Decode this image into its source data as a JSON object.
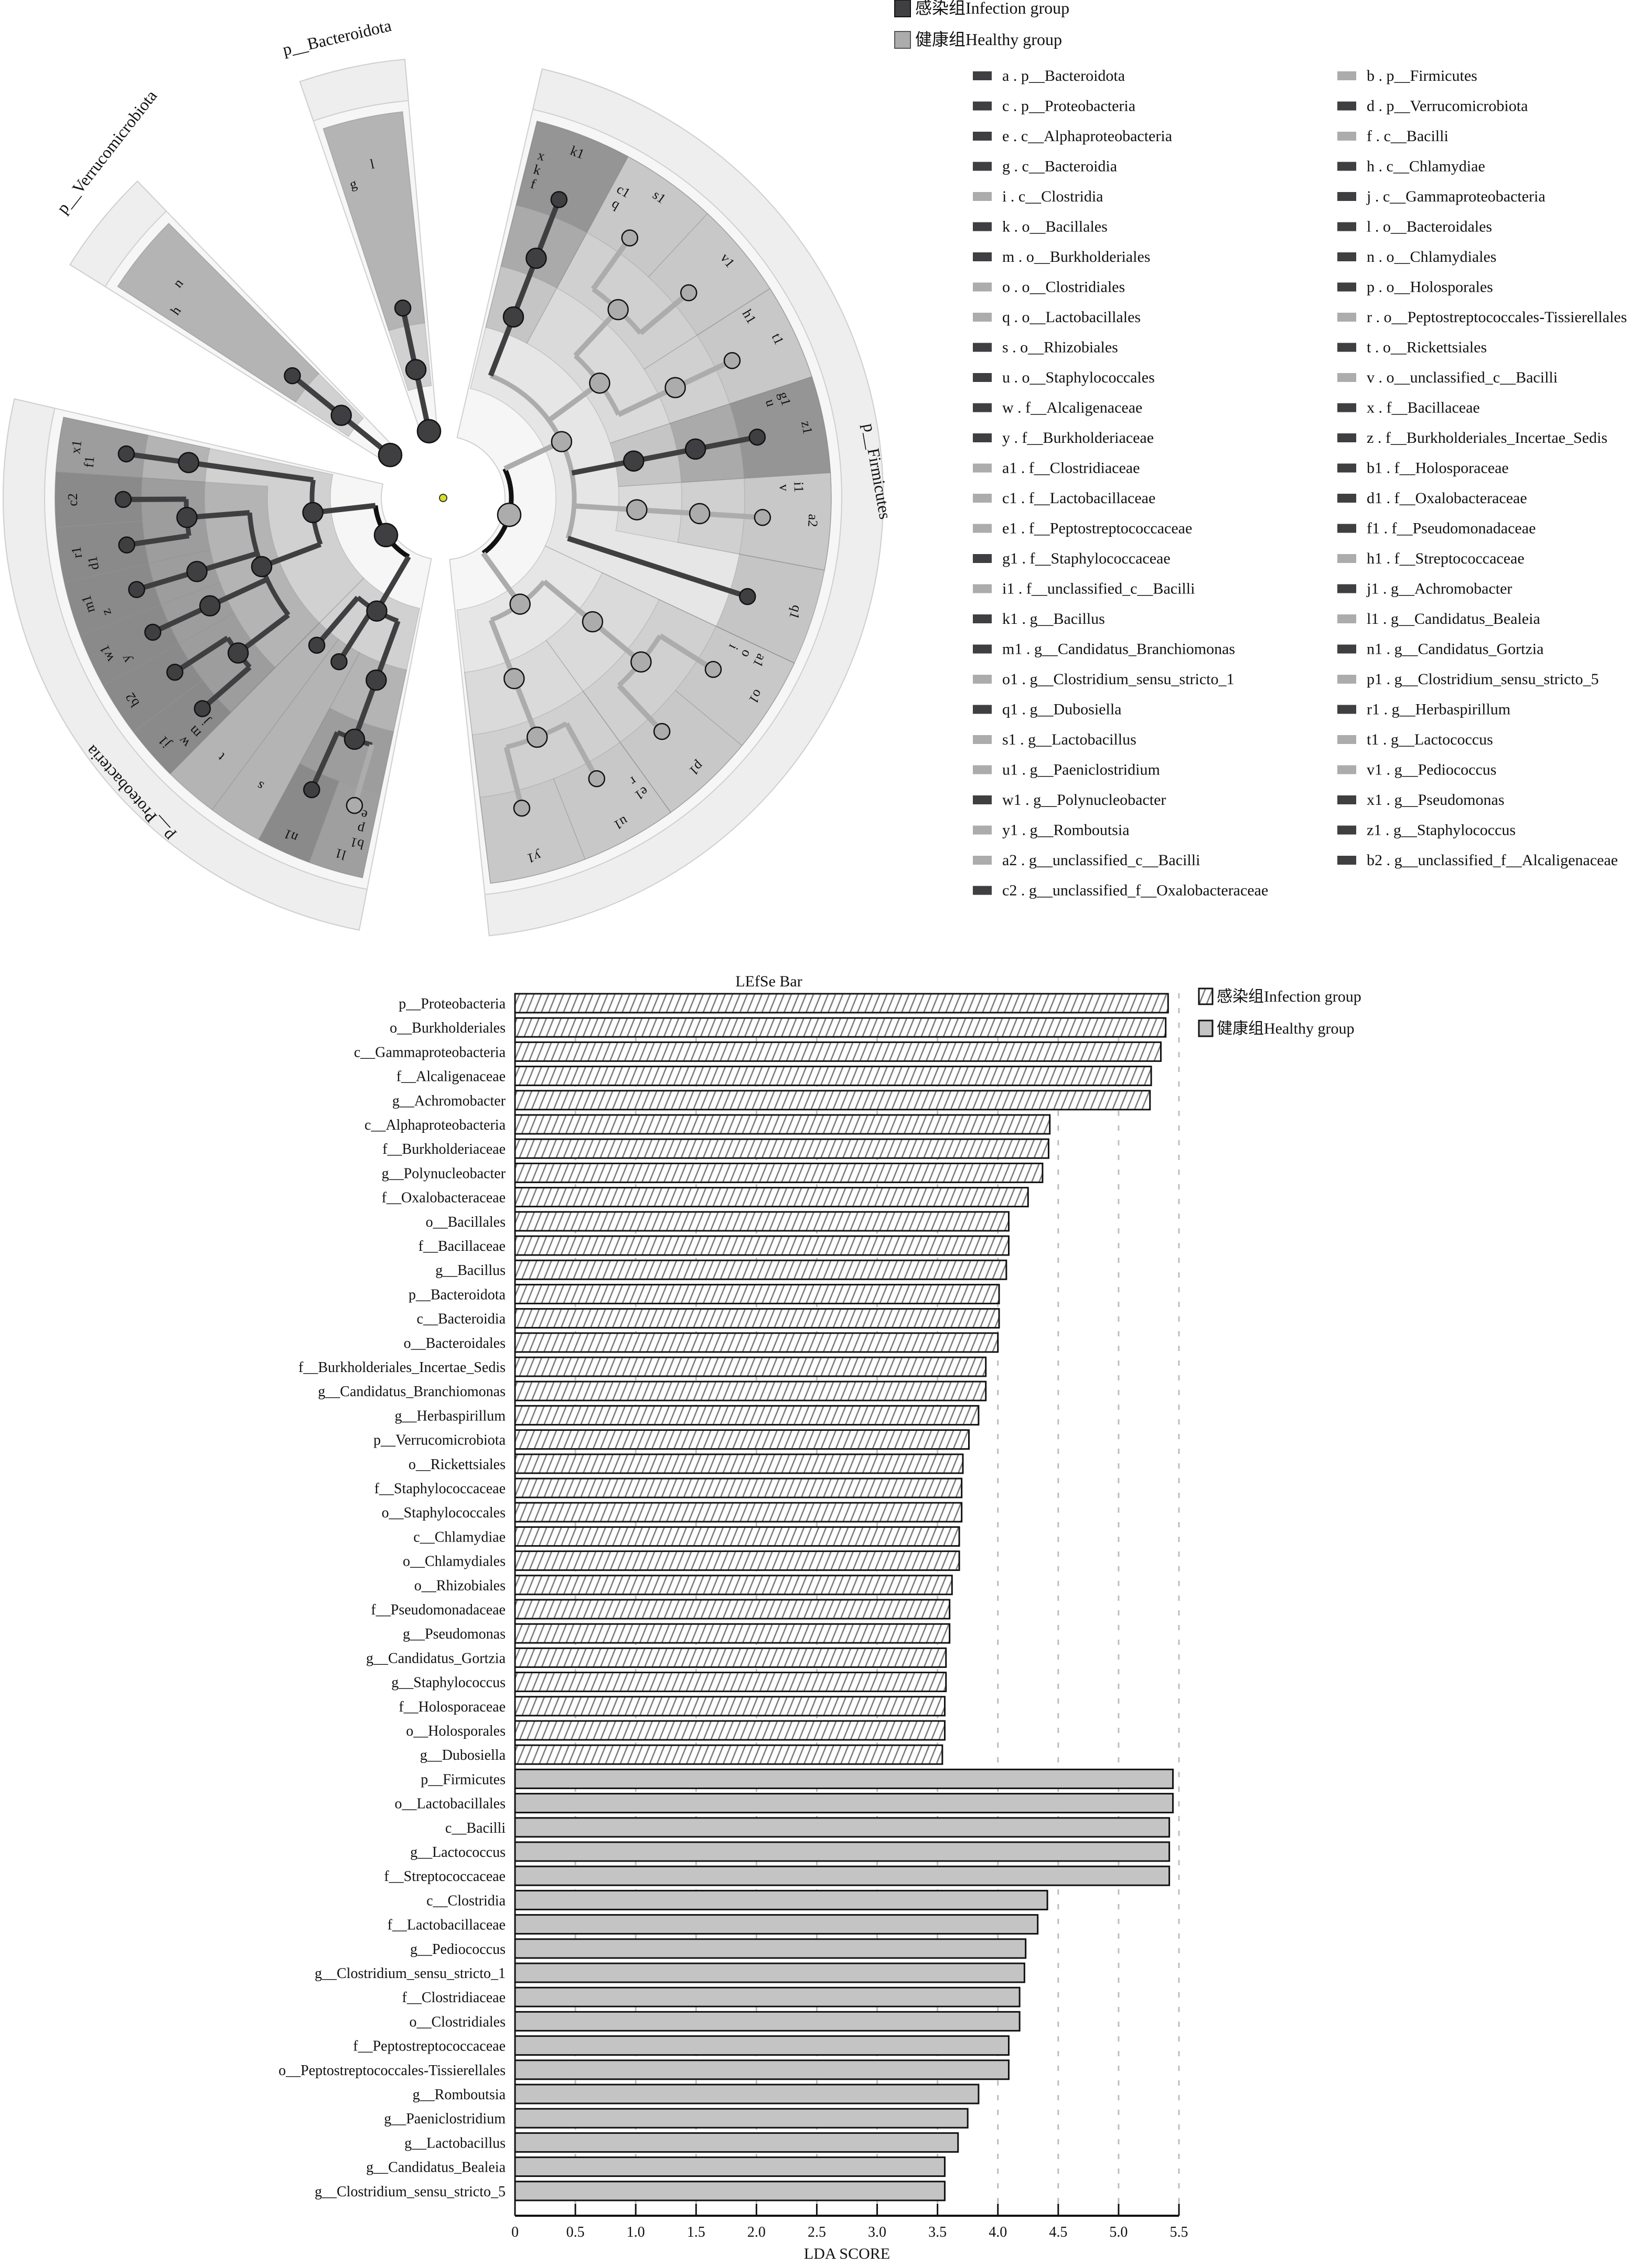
{
  "groups": {
    "infection": {
      "label": "感染组Infection group",
      "color": "#3f3f42"
    },
    "healthy": {
      "label": "健康组Healthy group",
      "color": "#acacac"
    }
  },
  "cladogram": {
    "phylum_labels": {
      "a": "p__Bacteroidota",
      "d": "p__Verrucomicrobiota",
      "b": "p__Firmicutes",
      "c": "p__Proteobacteria"
    },
    "nonsignificant_node_color": "#d9e021",
    "nodes": [
      {
        "key": "a",
        "name": "p__Bacteroidota",
        "group": "infection",
        "parent": null
      },
      {
        "key": "b",
        "name": "p__Firmicutes",
        "group": "healthy",
        "parent": null
      },
      {
        "key": "c",
        "name": "p__Proteobacteria",
        "group": "infection",
        "parent": null
      },
      {
        "key": "d",
        "name": "p__Verrucomicrobiota",
        "group": "infection",
        "parent": null
      },
      {
        "key": "e",
        "name": "c__Alphaproteobacteria",
        "group": "infection",
        "parent": "c"
      },
      {
        "key": "f",
        "name": "c__Bacilli",
        "group": "healthy",
        "parent": "b"
      },
      {
        "key": "g",
        "name": "c__Bacteroidia",
        "group": "infection",
        "parent": "a"
      },
      {
        "key": "h",
        "name": "c__Chlamydiae",
        "group": "infection",
        "parent": "d"
      },
      {
        "key": "i",
        "name": "c__Clostridia",
        "group": "healthy",
        "parent": "b"
      },
      {
        "key": "j",
        "name": "c__Gammaproteobacteria",
        "group": "infection",
        "parent": "c"
      },
      {
        "key": "k",
        "name": "o__Bacillales",
        "group": "infection",
        "parent": "f"
      },
      {
        "key": "l",
        "name": "o__Bacteroidales",
        "group": "infection",
        "parent": "g"
      },
      {
        "key": "m",
        "name": "o__Burkholderiales",
        "group": "infection",
        "parent": "j"
      },
      {
        "key": "n",
        "name": "o__Chlamydiales",
        "group": "infection",
        "parent": "h"
      },
      {
        "key": "o",
        "name": "o__Clostridiales",
        "group": "healthy",
        "parent": "i"
      },
      {
        "key": "p",
        "name": "o__Holosporales",
        "group": "infection",
        "parent": "e"
      },
      {
        "key": "q",
        "name": "o__Lactobacillales",
        "group": "healthy",
        "parent": "f"
      },
      {
        "key": "r",
        "name": "o__Peptostreptococcales-Tissierellales",
        "group": "healthy",
        "parent": "i"
      },
      {
        "key": "s",
        "name": "o__Rhizobiales",
        "group": "infection",
        "parent": "e"
      },
      {
        "key": "t",
        "name": "o__Rickettsiales",
        "group": "infection",
        "parent": "e"
      },
      {
        "key": "u",
        "name": "o__Staphylococcales",
        "group": "infection",
        "parent": "f"
      },
      {
        "key": "v",
        "name": "o__unclassified_c__Bacilli",
        "group": "healthy",
        "parent": "f"
      },
      {
        "key": "w",
        "name": "f__Alcaligenaceae",
        "group": "infection",
        "parent": "m"
      },
      {
        "key": "x",
        "name": "f__Bacillaceae",
        "group": "infection",
        "parent": "k"
      },
      {
        "key": "y",
        "name": "f__Burkholderiaceae",
        "group": "infection",
        "parent": "m"
      },
      {
        "key": "z",
        "name": "f__Burkholderiales_Incertae_Sedis",
        "group": "infection",
        "parent": "m"
      },
      {
        "key": "a1",
        "name": "f__Clostridiaceae",
        "group": "healthy",
        "parent": "o"
      },
      {
        "key": "b1",
        "name": "f__Holosporaceae",
        "group": "infection",
        "parent": "p"
      },
      {
        "key": "c1",
        "name": "f__Lactobacillaceae",
        "group": "healthy",
        "parent": "q"
      },
      {
        "key": "d1",
        "name": "f__Oxalobacteraceae",
        "group": "infection",
        "parent": "m"
      },
      {
        "key": "e1",
        "name": "f__Peptostreptococcaceae",
        "group": "healthy",
        "parent": "r"
      },
      {
        "key": "f1",
        "name": "f__Pseudomonadaceae",
        "group": "infection",
        "parent": "j"
      },
      {
        "key": "g1",
        "name": "f__Staphylococcaceae",
        "group": "infection",
        "parent": "u"
      },
      {
        "key": "h1",
        "name": "f__Streptococcaceae",
        "group": "healthy",
        "parent": "q"
      },
      {
        "key": "i1",
        "name": "f__unclassified_c__Bacilli",
        "group": "healthy",
        "parent": "v"
      },
      {
        "key": "j1",
        "name": "g__Achromobacter",
        "group": "infection",
        "parent": "w"
      },
      {
        "key": "k1",
        "name": "g__Bacillus",
        "group": "infection",
        "parent": "x"
      },
      {
        "key": "l1",
        "name": "g__Candidatus_Bealeia",
        "group": "healthy",
        "parent": "b1"
      },
      {
        "key": "m1",
        "name": "g__Candidatus_Branchiomonas",
        "group": "infection",
        "parent": "z"
      },
      {
        "key": "n1",
        "name": "g__Candidatus_Gortzia",
        "group": "infection",
        "parent": "b1"
      },
      {
        "key": "o1",
        "name": "g__Clostridium_sensu_stricto_1",
        "group": "healthy",
        "parent": "a1"
      },
      {
        "key": "p1",
        "name": "g__Clostridium_sensu_stricto_5",
        "group": "healthy",
        "parent": "a1"
      },
      {
        "key": "q1",
        "name": "g__Dubosiella",
        "group": "infection",
        "parent": "f"
      },
      {
        "key": "r1",
        "name": "g__Herbaspirillum",
        "group": "infection",
        "parent": "d1"
      },
      {
        "key": "s1",
        "name": "g__Lactobacillus",
        "group": "healthy",
        "parent": "c1"
      },
      {
        "key": "t1",
        "name": "g__Lactococcus",
        "group": "healthy",
        "parent": "h1"
      },
      {
        "key": "u1",
        "name": "g__Paeniclostridium",
        "group": "healthy",
        "parent": "e1"
      },
      {
        "key": "v1",
        "name": "g__Pediococcus",
        "group": "healthy",
        "parent": "c1"
      },
      {
        "key": "w1",
        "name": "g__Polynucleobacter",
        "group": "infection",
        "parent": "y"
      },
      {
        "key": "x1",
        "name": "g__Pseudomonas",
        "group": "infection",
        "parent": "f1"
      },
      {
        "key": "y1",
        "name": "g__Romboutsia",
        "group": "healthy",
        "parent": "e1"
      },
      {
        "key": "z1",
        "name": "g__Staphylococcus",
        "group": "infection",
        "parent": "g1"
      },
      {
        "key": "a2",
        "name": "g__unclassified_c__Bacilli",
        "group": "healthy",
        "parent": "i1"
      },
      {
        "key": "b2",
        "name": "g__unclassified_f__Alcaligenaceae",
        "group": "infection",
        "parent": "w"
      },
      {
        "key": "c2",
        "name": "g__unclassified_f__Oxalobacteraceae",
        "group": "infection",
        "parent": "d1"
      }
    ]
  },
  "chart_data": {
    "type": "bar",
    "orientation": "horizontal",
    "title": "LEfSe Bar",
    "xlabel": "LDA SCORE",
    "xlim": [
      0,
      5.5
    ],
    "xticks": [
      "0",
      "0.5",
      "1.0",
      "1.5",
      "2.0",
      "2.5",
      "3.0",
      "3.5",
      "4.0",
      "4.5",
      "5.0",
      "5.5"
    ],
    "grid": "vertical dotted",
    "legend_position": "top-right",
    "series": [
      {
        "name": "感染组Infection group",
        "group": "infection",
        "fill": "hatched"
      },
      {
        "name": "健康组Healthy group",
        "group": "healthy",
        "fill": "#c4c4c4"
      }
    ],
    "bars": [
      {
        "label": "p__Proteobacteria",
        "group": "infection",
        "value": 5.41
      },
      {
        "label": "o__Burkholderiales",
        "group": "infection",
        "value": 5.39
      },
      {
        "label": "c__Gammaproteobacteria",
        "group": "infection",
        "value": 5.35
      },
      {
        "label": "f__Alcaligenaceae",
        "group": "infection",
        "value": 5.27
      },
      {
        "label": "g__Achromobacter",
        "group": "infection",
        "value": 5.26
      },
      {
        "label": "c__Alphaproteobacteria",
        "group": "infection",
        "value": 4.43
      },
      {
        "label": "f__Burkholderiaceae",
        "group": "infection",
        "value": 4.42
      },
      {
        "label": "g__Polynucleobacter",
        "group": "infection",
        "value": 4.37
      },
      {
        "label": "f__Oxalobacteraceae",
        "group": "infection",
        "value": 4.25
      },
      {
        "label": "o__Bacillales",
        "group": "infection",
        "value": 4.09
      },
      {
        "label": "f__Bacillaceae",
        "group": "infection",
        "value": 4.09
      },
      {
        "label": "g__Bacillus",
        "group": "infection",
        "value": 4.07
      },
      {
        "label": "p__Bacteroidota",
        "group": "infection",
        "value": 4.01
      },
      {
        "label": "c__Bacteroidia",
        "group": "infection",
        "value": 4.01
      },
      {
        "label": "o__Bacteroidales",
        "group": "infection",
        "value": 4.0
      },
      {
        "label": "f__Burkholderiales_Incertae_Sedis",
        "group": "infection",
        "value": 3.9
      },
      {
        "label": "g__Candidatus_Branchiomonas",
        "group": "infection",
        "value": 3.9
      },
      {
        "label": "g__Herbaspirillum",
        "group": "infection",
        "value": 3.84
      },
      {
        "label": "p__Verrucomicrobiota",
        "group": "infection",
        "value": 3.76
      },
      {
        "label": "o__Rickettsiales",
        "group": "infection",
        "value": 3.71
      },
      {
        "label": "f__Staphylococcaceae",
        "group": "infection",
        "value": 3.7
      },
      {
        "label": "o__Staphylococcales",
        "group": "infection",
        "value": 3.7
      },
      {
        "label": "c__Chlamydiae",
        "group": "infection",
        "value": 3.68
      },
      {
        "label": "o__Chlamydiales",
        "group": "infection",
        "value": 3.68
      },
      {
        "label": "o__Rhizobiales",
        "group": "infection",
        "value": 3.62
      },
      {
        "label": "f__Pseudomonadaceae",
        "group": "infection",
        "value": 3.6
      },
      {
        "label": "g__Pseudomonas",
        "group": "infection",
        "value": 3.6
      },
      {
        "label": "g__Candidatus_Gortzia",
        "group": "infection",
        "value": 3.57
      },
      {
        "label": "g__Staphylococcus",
        "group": "infection",
        "value": 3.57
      },
      {
        "label": "f__Holosporaceae",
        "group": "infection",
        "value": 3.56
      },
      {
        "label": "o__Holosporales",
        "group": "infection",
        "value": 3.56
      },
      {
        "label": "g__Dubosiella",
        "group": "infection",
        "value": 3.54
      },
      {
        "label": "p__Firmicutes",
        "group": "healthy",
        "value": 5.45
      },
      {
        "label": "o__Lactobacillales",
        "group": "healthy",
        "value": 5.45
      },
      {
        "label": "c__Bacilli",
        "group": "healthy",
        "value": 5.42
      },
      {
        "label": "g__Lactococcus",
        "group": "healthy",
        "value": 5.42
      },
      {
        "label": "f__Streptococcaceae",
        "group": "healthy",
        "value": 5.42
      },
      {
        "label": "c__Clostridia",
        "group": "healthy",
        "value": 4.41
      },
      {
        "label": "f__Lactobacillaceae",
        "group": "healthy",
        "value": 4.33
      },
      {
        "label": "g__Pediococcus",
        "group": "healthy",
        "value": 4.23
      },
      {
        "label": "g__Clostridium_sensu_stricto_1",
        "group": "healthy",
        "value": 4.22
      },
      {
        "label": "f__Clostridiaceae",
        "group": "healthy",
        "value": 4.18
      },
      {
        "label": "o__Clostridiales",
        "group": "healthy",
        "value": 4.18
      },
      {
        "label": "f__Peptostreptococcaceae",
        "group": "healthy",
        "value": 4.09
      },
      {
        "label": "o__Peptostreptococcales-Tissierellales",
        "group": "healthy",
        "value": 4.09
      },
      {
        "label": "g__Romboutsia",
        "group": "healthy",
        "value": 3.84
      },
      {
        "label": "g__Paeniclostridium",
        "group": "healthy",
        "value": 3.75
      },
      {
        "label": "g__Lactobacillus",
        "group": "healthy",
        "value": 3.67
      },
      {
        "label": "g__Candidatus_Bealeia",
        "group": "healthy",
        "value": 3.56
      },
      {
        "label": "g__Clostridium_sensu_stricto_5",
        "group": "healthy",
        "value": 3.56
      }
    ]
  }
}
